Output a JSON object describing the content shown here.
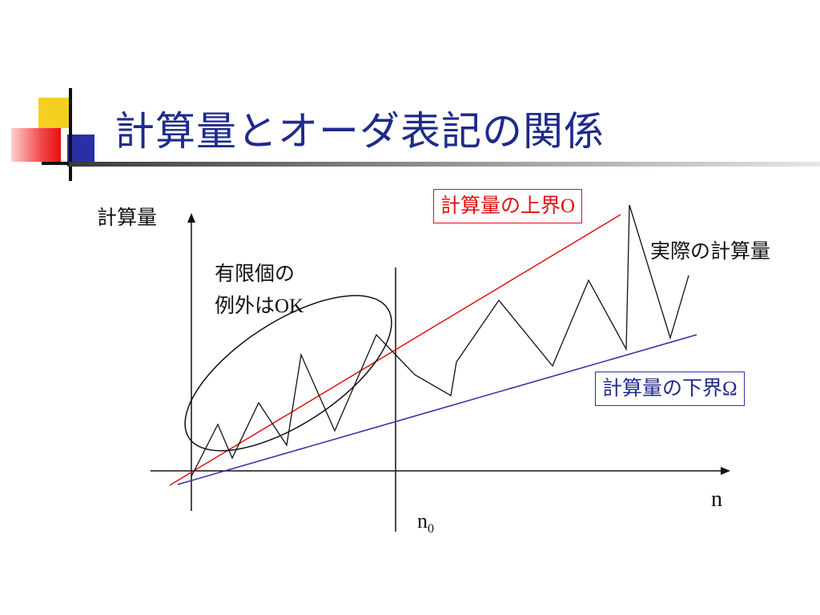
{
  "slide": {
    "title": "計算量とオーダ表記の関係"
  },
  "diagram": {
    "y_axis_label": "計算量",
    "x_axis_label": "n",
    "n0_base": "n",
    "n0_sub": "0",
    "upper_bound_label": "計算量の上界",
    "upper_bound_symbol": "O",
    "lower_bound_label": "計算量の下界",
    "lower_bound_symbol": "Ω",
    "actual_label": "実際の計算量",
    "exception_note_line1": "有限個の",
    "exception_note_line2_prefix": "例外は",
    "exception_note_line2_suffix": "OK"
  },
  "colors": {
    "title": "#1f2a8c",
    "upper_bound": "#e01010",
    "lower_bound": "#2a2fa4",
    "axis": "#111111",
    "yellow_accent": "#f5cf1e",
    "red_accent": "#e41010"
  }
}
